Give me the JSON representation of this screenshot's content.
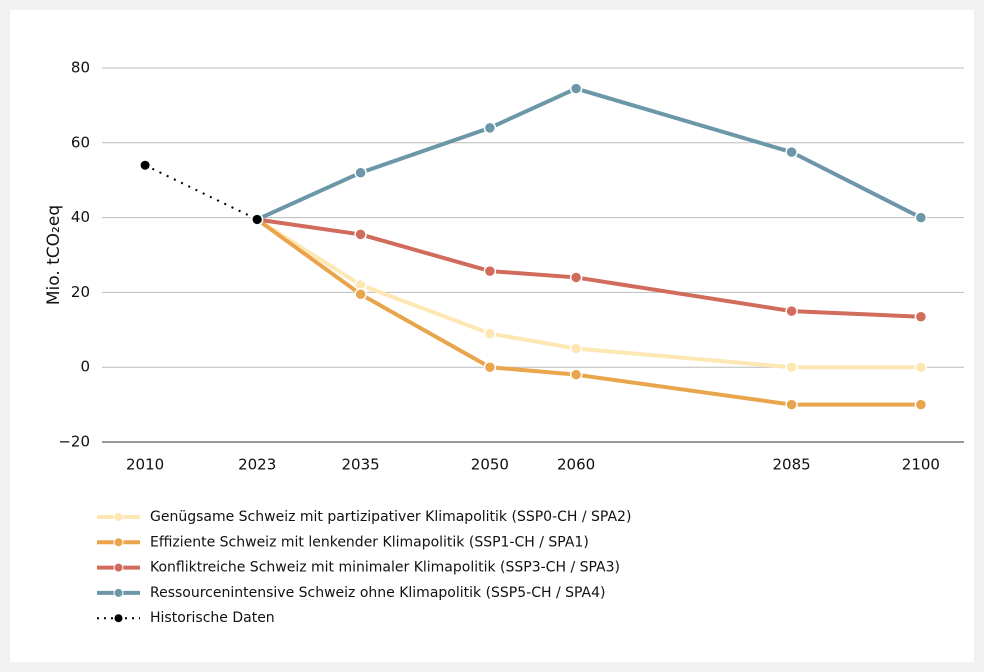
{
  "chart_data": {
    "type": "line",
    "ylabel": "Mio. tCO₂eq",
    "x": [
      2010,
      2023,
      2035,
      2050,
      2060,
      2085,
      2100
    ],
    "xticks": [
      2010,
      2023,
      2035,
      2050,
      2060,
      2085,
      2100
    ],
    "xlim": [
      2005,
      2105
    ],
    "ylim": [
      -20,
      80
    ],
    "yticks": [
      {
        "value": -20,
        "label": "−20"
      },
      0,
      20,
      40,
      60,
      80
    ],
    "grid": true,
    "legend": "bottom",
    "series": [
      {
        "name": "Genügsame Schweiz mit partizipativer Klimapolitik (SSP0-CH / SPA2)",
        "color": "#fde7b3",
        "values": [
          null,
          39.5,
          22,
          9,
          5,
          0,
          0
        ]
      },
      {
        "name": "Effiziente Schweiz mit lenkender Klimapolitik (SSP1-CH / SPA1)",
        "color": "#e9a54b",
        "values": [
          null,
          39.5,
          19.5,
          0,
          -2,
          -10,
          -10
        ]
      },
      {
        "name": "Konfliktreiche Schweiz mit minimaler Klimapolitik (SSP3-CH / SPA3)",
        "color": "#d16b5b",
        "values": [
          null,
          39.5,
          35.5,
          25.7,
          24,
          15,
          13.5
        ]
      },
      {
        "name": "Ressourcenintensive Schweiz ohne Klimapolitik (SSP5-CH / SPA4)",
        "color": "#6b97a8",
        "values": [
          null,
          39.5,
          52,
          64,
          74.5,
          57.5,
          40
        ]
      },
      {
        "name": "Historische Daten",
        "color": "#000000",
        "dotted": true,
        "values": [
          54,
          39.5,
          null,
          null,
          null,
          null,
          null
        ]
      }
    ]
  }
}
